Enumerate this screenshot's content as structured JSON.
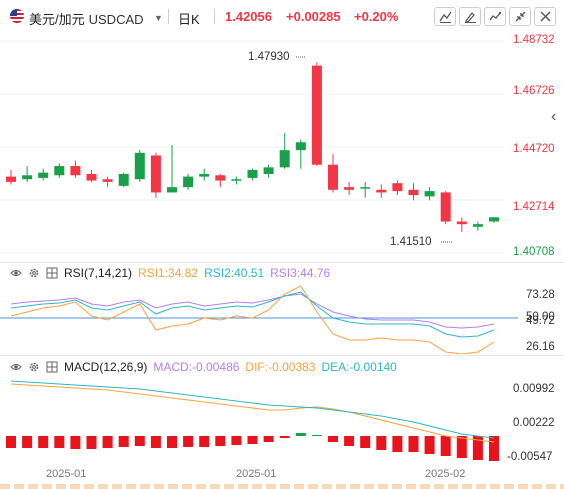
{
  "header": {
    "symbol_cn": "美元/加元",
    "symbol_en": "USDCAD",
    "timeframe": "日K",
    "price": "1.42056",
    "change": "+0.00285",
    "change_pct": "+0.20%",
    "accent_color": "#f23645",
    "toolbar_icons": [
      "line-draw-icon",
      "drawing-tools-icon",
      "indicator-icon",
      "fullscreen-exit-icon",
      "close-icon"
    ]
  },
  "main_chart": {
    "price_ticks": [
      "1.48732",
      "1.46726",
      "1.44720",
      "1.42714",
      "1.40708"
    ],
    "high_label": "1.47930",
    "low_label": "1.41510",
    "side_arrow": "‹",
    "up_color": "#1aa04a",
    "down_color": "#f23645"
  },
  "rsi": {
    "name": "RSI(7,14,21)",
    "rsi1": "RSI1:34.82",
    "rsi2": "RSI2:40.51",
    "rsi3": "RSI3:44.76",
    "ticks": [
      "73.28",
      "50.00",
      "49.72",
      "26.16"
    ],
    "colors": {
      "rsi1": "#f7a23c",
      "rsi2": "#2ab7c9",
      "rsi3": "#b37feb"
    }
  },
  "macd": {
    "name": "MACD(12,26,9)",
    "macd": "MACD:-0.00486",
    "dif": "DIF:-0.00383",
    "dea": "DEA:-0.00140",
    "ticks": [
      "0.00992",
      "0.00222",
      "-0.00547"
    ],
    "colors": {
      "macd": "#b37feb",
      "dif": "#f7a23c",
      "dea": "#2ab7c9"
    }
  },
  "x_axis": [
    "2025-01",
    "2025-01",
    "2025-02"
  ],
  "chart_data": [
    {
      "type": "candlestick",
      "title": "美元/加元 USDCAD 日K",
      "y_ticks": [
        1.48732,
        1.46726,
        1.4472,
        1.42714,
        1.40708
      ],
      "candles": [
        {
          "o": 1.436,
          "h": 1.4385,
          "l": 1.433,
          "c": 1.434
        },
        {
          "o": 1.435,
          "h": 1.44,
          "l": 1.434,
          "c": 1.4365
        },
        {
          "o": 1.4355,
          "h": 1.439,
          "l": 1.4345,
          "c": 1.4375
        },
        {
          "o": 1.4365,
          "h": 1.441,
          "l": 1.4355,
          "c": 1.44
        },
        {
          "o": 1.44,
          "h": 1.442,
          "l": 1.4355,
          "c": 1.4365
        },
        {
          "o": 1.437,
          "h": 1.4385,
          "l": 1.434,
          "c": 1.4345
        },
        {
          "o": 1.435,
          "h": 1.436,
          "l": 1.432,
          "c": 1.434
        },
        {
          "o": 1.4325,
          "h": 1.4375,
          "l": 1.432,
          "c": 1.437
        },
        {
          "o": 1.435,
          "h": 1.446,
          "l": 1.434,
          "c": 1.445
        },
        {
          "o": 1.444,
          "h": 1.445,
          "l": 1.428,
          "c": 1.43
        },
        {
          "o": 1.43,
          "h": 1.448,
          "l": 1.43,
          "c": 1.432
        },
        {
          "o": 1.432,
          "h": 1.437,
          "l": 1.431,
          "c": 1.436
        },
        {
          "o": 1.436,
          "h": 1.439,
          "l": 1.4345,
          "c": 1.437
        },
        {
          "o": 1.4365,
          "h": 1.437,
          "l": 1.432,
          "c": 1.4345
        },
        {
          "o": 1.4345,
          "h": 1.436,
          "l": 1.433,
          "c": 1.435
        },
        {
          "o": 1.4355,
          "h": 1.439,
          "l": 1.4345,
          "c": 1.4385
        },
        {
          "o": 1.437,
          "h": 1.4405,
          "l": 1.4355,
          "c": 1.4395
        },
        {
          "o": 1.4395,
          "h": 1.4525,
          "l": 1.439,
          "c": 1.446
        },
        {
          "o": 1.446,
          "h": 1.45,
          "l": 1.439,
          "c": 1.449
        },
        {
          "o": 1.478,
          "h": 1.4793,
          "l": 1.44,
          "c": 1.4405
        },
        {
          "o": 1.4405,
          "h": 1.4445,
          "l": 1.43,
          "c": 1.431
        },
        {
          "o": 1.432,
          "h": 1.434,
          "l": 1.429,
          "c": 1.431
        },
        {
          "o": 1.4315,
          "h": 1.434,
          "l": 1.428,
          "c": 1.432
        },
        {
          "o": 1.431,
          "h": 1.433,
          "l": 1.428,
          "c": 1.43
        },
        {
          "o": 1.4335,
          "h": 1.4345,
          "l": 1.429,
          "c": 1.4305
        },
        {
          "o": 1.431,
          "h": 1.4335,
          "l": 1.427,
          "c": 1.429
        },
        {
          "o": 1.4285,
          "h": 1.432,
          "l": 1.427,
          "c": 1.4305
        },
        {
          "o": 1.43,
          "h": 1.4305,
          "l": 1.418,
          "c": 1.419
        },
        {
          "o": 1.419,
          "h": 1.4205,
          "l": 1.4151,
          "c": 1.418
        },
        {
          "o": 1.417,
          "h": 1.419,
          "l": 1.4155,
          "c": 1.418
        },
        {
          "o": 1.419,
          "h": 1.4206,
          "l": 1.4185,
          "c": 1.4206
        }
      ]
    }
  ]
}
